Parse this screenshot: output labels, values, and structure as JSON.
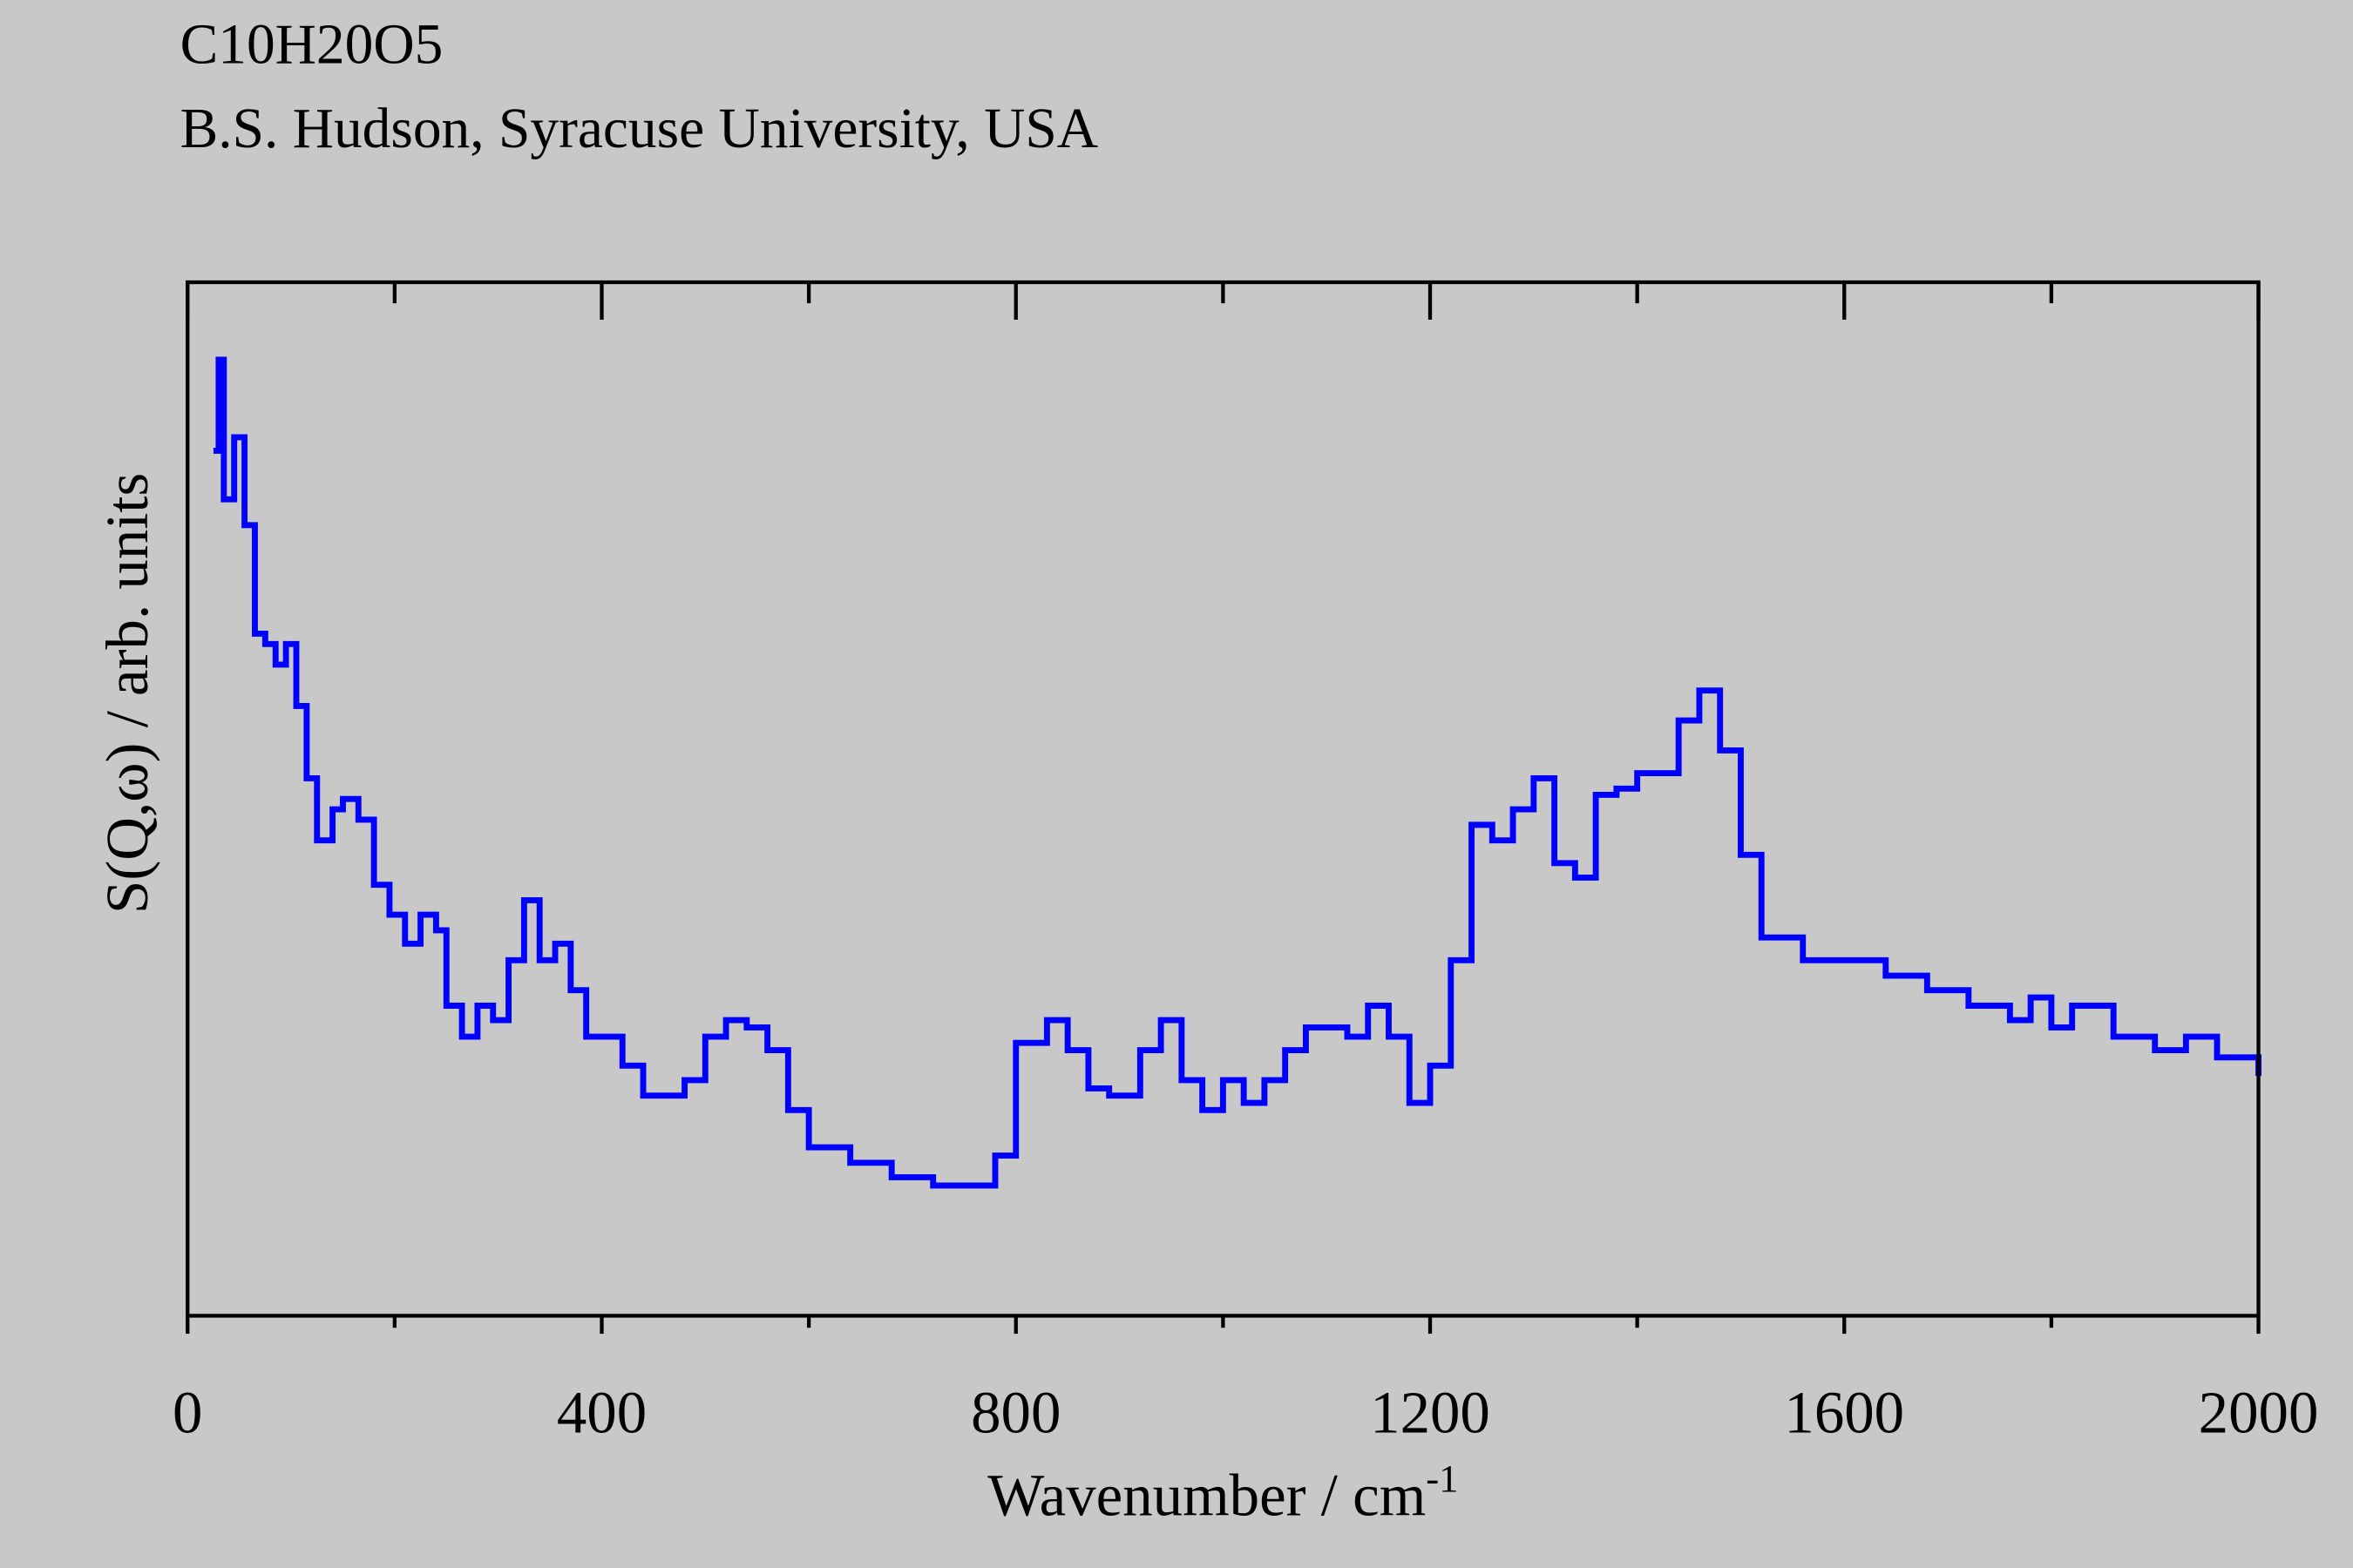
{
  "chart_data": {
    "type": "line",
    "step": true,
    "title": "C10H20O5",
    "subtitle": "B.S. Hudson, Syracuse University, USA",
    "x_label": "Wavenumber / cm",
    "x_label_sup": "-1",
    "y_label": "S(Q,ω) / arb. units",
    "xlim": [
      0,
      2000
    ],
    "ylim": [
      0,
      100
    ],
    "xticks": [
      0,
      400,
      800,
      1200,
      1600,
      2000
    ],
    "xminorticks": [
      200,
      600,
      1000,
      1400,
      1800
    ],
    "grid": false,
    "x": [
      25,
      30,
      35,
      45,
      55,
      65,
      75,
      85,
      95,
      105,
      115,
      125,
      140,
      150,
      165,
      180,
      195,
      210,
      225,
      240,
      250,
      265,
      280,
      295,
      310,
      325,
      340,
      355,
      370,
      385,
      400,
      420,
      440,
      460,
      480,
      500,
      520,
      540,
      560,
      580,
      600,
      640,
      680,
      720,
      760,
      780,
      800,
      830,
      850,
      870,
      890,
      920,
      940,
      960,
      980,
      1000,
      1020,
      1040,
      1060,
      1080,
      1100,
      1120,
      1140,
      1160,
      1180,
      1200,
      1220,
      1240,
      1260,
      1280,
      1300,
      1320,
      1340,
      1360,
      1380,
      1400,
      1420,
      1440,
      1460,
      1480,
      1500,
      1520,
      1540,
      1560,
      1600,
      1640,
      1680,
      1720,
      1760,
      1780,
      1800,
      1820,
      1860,
      1900,
      1930,
      1960,
      2000
    ],
    "series": [
      {
        "name": "S(Q,ω)",
        "color": "#0000ff",
        "values": [
          83.7,
          92.5,
          79,
          85,
          76.5,
          66,
          65,
          63,
          65,
          59,
          52,
          46,
          49,
          50,
          48,
          41.7,
          38.8,
          36,
          38.8,
          37.3,
          30,
          27,
          30,
          28.6,
          34.4,
          40.2,
          34.4,
          36,
          31.5,
          27,
          27,
          24.2,
          21.3,
          21.3,
          22.8,
          27,
          28.6,
          27.9,
          25.7,
          19.9,
          16.3,
          14.8,
          13.4,
          12.6,
          12.6,
          15.5,
          26.4,
          28.6,
          25.7,
          22,
          21.3,
          25.7,
          28.6,
          22.8,
          19.9,
          22.8,
          20.6,
          22.8,
          25.7,
          27.9,
          27.9,
          27,
          30,
          27,
          20.6,
          24.2,
          34.4,
          47.5,
          46,
          49,
          52,
          43.8,
          42.4,
          50.4,
          51,
          52.5,
          52.5,
          57.6,
          60.5,
          54.7,
          44.6,
          36.6,
          36.6,
          34.4,
          34.4,
          32.9,
          31.5,
          30,
          28.6,
          30.8,
          27.9,
          30,
          27,
          25.7,
          27,
          25,
          23.2
        ]
      }
    ]
  }
}
